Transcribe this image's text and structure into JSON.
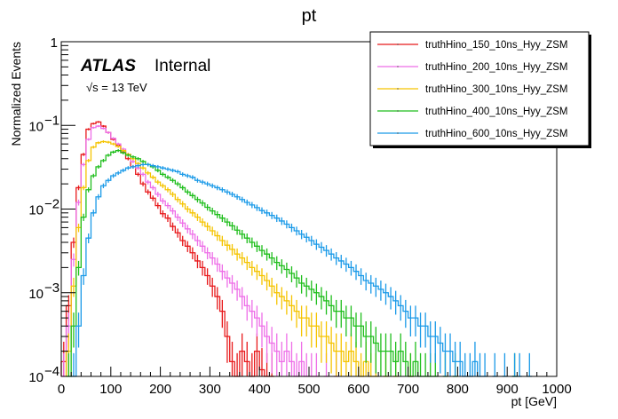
{
  "chart_data": {
    "type": "line",
    "style": "step-histogram-with-errors",
    "title": "pt",
    "xlabel": "pt [GeV]",
    "ylabel": "Normalized Events",
    "xlim": [
      0,
      1000
    ],
    "ylim": [
      0.0001,
      1
    ],
    "yscale": "log",
    "x_ticks": [
      "0",
      "100",
      "200",
      "300",
      "400",
      "500",
      "600",
      "700",
      "800",
      "900",
      "1000"
    ],
    "y_ticks": [
      {
        "base": "1",
        "exp": ""
      },
      {
        "base": "10",
        "exp": "−1"
      },
      {
        "base": "10",
        "exp": "−2"
      },
      {
        "base": "10",
        "exp": "−3"
      },
      {
        "base": "10",
        "exp": "−4"
      }
    ],
    "grid": false,
    "legend_position": "top-right",
    "bin_width": 10,
    "annotations": {
      "atlas": "ATLAS",
      "internal": "Internal",
      "energy": "√s = 13 TeV"
    },
    "series": [
      {
        "name": "truthHino_150_10ns_Hyy_ZSM",
        "color": "#e8191b",
        "values": [
          0.00015,
          0.0007,
          0.004,
          0.018,
          0.045,
          0.09,
          0.105,
          0.11,
          0.098,
          0.082,
          0.068,
          0.058,
          0.048,
          0.04,
          0.032,
          0.026,
          0.02,
          0.016,
          0.0135,
          0.011,
          0.0088,
          0.0078,
          0.0062,
          0.0052,
          0.0042,
          0.0036,
          0.003,
          0.0024,
          0.002,
          0.0016,
          0.0012,
          0.0009,
          0.0006,
          0.0003,
          0.00015,
          0.0001,
          0.0002,
          0.00015,
          0.0001,
          0.0002,
          0.00012,
          0.0001,
          0.0001,
          0,
          0,
          0,
          0,
          0,
          0,
          0,
          0,
          0,
          0,
          0,
          0,
          0,
          0,
          0,
          0,
          0,
          0,
          0,
          0,
          0,
          0,
          0,
          0,
          0,
          0,
          0,
          0,
          0,
          0,
          0,
          0,
          0,
          0,
          0,
          0,
          0,
          0,
          0,
          0,
          0,
          0,
          0,
          0,
          0,
          0,
          0,
          0,
          0,
          0,
          0,
          0,
          0,
          0,
          0,
          0,
          0
        ]
      },
      {
        "name": "truthHino_200_10ns_Hyy_ZSM",
        "color": "#ee6ee8",
        "values": [
          0.0001,
          0.0004,
          0.0025,
          0.012,
          0.034,
          0.068,
          0.094,
          0.098,
          0.092,
          0.082,
          0.07,
          0.06,
          0.052,
          0.045,
          0.037,
          0.031,
          0.026,
          0.021,
          0.018,
          0.015,
          0.0125,
          0.011,
          0.0095,
          0.008,
          0.0068,
          0.0058,
          0.005,
          0.0042,
          0.0036,
          0.003,
          0.0026,
          0.0022,
          0.0018,
          0.0015,
          0.0013,
          0.0011,
          0.0009,
          0.0007,
          0.0006,
          0.0005,
          0.0004,
          0.0003,
          0.00025,
          0.0002,
          0.00015,
          0.0002,
          0.00015,
          0.0001,
          0.00015,
          0.0001,
          0.0001,
          0.0001,
          0,
          0.0001,
          0,
          0.0001,
          0,
          0,
          0,
          0,
          0,
          0,
          0,
          0,
          0,
          0,
          0,
          0,
          0,
          0,
          0,
          0,
          0,
          0,
          0,
          0,
          0,
          0,
          0,
          0,
          0,
          0,
          0,
          0,
          0,
          0,
          0,
          0,
          0,
          0,
          0,
          0,
          0,
          0,
          0,
          0,
          0,
          0,
          0,
          0
        ]
      },
      {
        "name": "truthHino_300_10ns_Hyy_ZSM",
        "color": "#f5c400",
        "values": [
          0,
          0.0002,
          0.0012,
          0.006,
          0.018,
          0.038,
          0.055,
          0.062,
          0.064,
          0.063,
          0.06,
          0.056,
          0.05,
          0.045,
          0.04,
          0.035,
          0.031,
          0.027,
          0.024,
          0.021,
          0.019,
          0.017,
          0.015,
          0.013,
          0.0115,
          0.01,
          0.009,
          0.008,
          0.007,
          0.0062,
          0.0055,
          0.0048,
          0.0042,
          0.0037,
          0.0033,
          0.0029,
          0.0026,
          0.0023,
          0.002,
          0.0018,
          0.0016,
          0.0014,
          0.0012,
          0.001,
          0.0009,
          0.0008,
          0.0007,
          0.0006,
          0.0005,
          0.0005,
          0.0004,
          0.0004,
          0.0003,
          0.0003,
          0.00025,
          0.0002,
          0.0002,
          0.00015,
          0.0002,
          0.00015,
          0.0001,
          0.00015,
          0.0001,
          0.0001,
          0,
          0.0001,
          0,
          0.0001,
          0,
          0,
          0.0001,
          0,
          0,
          0,
          0,
          0,
          0,
          0,
          0,
          0,
          0,
          0,
          0,
          0,
          0,
          0,
          0,
          0,
          0,
          0,
          0,
          0,
          0,
          0,
          0,
          0,
          0,
          0,
          0,
          0
        ]
      },
      {
        "name": "truthHino_400_10ns_Hyy_ZSM",
        "color": "#1fbe1c",
        "values": [
          0,
          0.0001,
          0.0004,
          0.002,
          0.008,
          0.017,
          0.025,
          0.032,
          0.038,
          0.044,
          0.048,
          0.05,
          0.047,
          0.044,
          0.042,
          0.04,
          0.037,
          0.034,
          0.032,
          0.029,
          0.026,
          0.024,
          0.022,
          0.02,
          0.018,
          0.016,
          0.0145,
          0.013,
          0.0118,
          0.0105,
          0.0095,
          0.0086,
          0.0078,
          0.007,
          0.0063,
          0.0056,
          0.005,
          0.0045,
          0.004,
          0.0036,
          0.0032,
          0.0029,
          0.0026,
          0.0023,
          0.0021,
          0.0019,
          0.0017,
          0.0015,
          0.0013,
          0.0012,
          0.0011,
          0.001,
          0.0009,
          0.0008,
          0.0007,
          0.0006,
          0.0006,
          0.0005,
          0.0005,
          0.0004,
          0.0004,
          0.0003,
          0.0003,
          0.00025,
          0.0002,
          0.0002,
          0.0002,
          0.00015,
          0.0002,
          0.00015,
          0.0001,
          0.00015,
          0.0001,
          0.0001,
          0.0001,
          0.0001,
          0,
          0.0001,
          0,
          0.0001,
          0,
          0,
          0,
          0,
          0,
          0,
          0,
          0,
          0,
          0,
          0,
          0.0001,
          0,
          0,
          0,
          0,
          0,
          0,
          0,
          0
        ]
      },
      {
        "name": "truthHino_600_10ns_Hyy_ZSM",
        "color": "#1a9ae8",
        "values": [
          0,
          0,
          0.0001,
          0.0004,
          0.0016,
          0.0045,
          0.009,
          0.014,
          0.019,
          0.022,
          0.025,
          0.027,
          0.029,
          0.031,
          0.032,
          0.033,
          0.034,
          0.034,
          0.033,
          0.032,
          0.031,
          0.03,
          0.029,
          0.028,
          0.026,
          0.025,
          0.024,
          0.022,
          0.021,
          0.02,
          0.019,
          0.018,
          0.017,
          0.016,
          0.015,
          0.014,
          0.013,
          0.012,
          0.0112,
          0.0104,
          0.0096,
          0.009,
          0.0084,
          0.0078,
          0.0072,
          0.0066,
          0.006,
          0.0055,
          0.005,
          0.0046,
          0.0042,
          0.0038,
          0.0035,
          0.0032,
          0.0029,
          0.0026,
          0.0024,
          0.0022,
          0.002,
          0.0018,
          0.0016,
          0.0014,
          0.0013,
          0.0012,
          0.0011,
          0.001,
          0.0009,
          0.0008,
          0.0007,
          0.0006,
          0.0005,
          0.0005,
          0.0004,
          0.0004,
          0.0003,
          0.0003,
          0.00025,
          0.0002,
          0.0002,
          0.00015,
          0.00015,
          0.0001,
          0.0001,
          0.00015,
          0.0001,
          0.0001,
          0,
          0.0001,
          0,
          0.0001,
          0,
          0.0001,
          0.0001,
          0,
          0.0001,
          0,
          0,
          0,
          0,
          0
        ]
      }
    ]
  }
}
